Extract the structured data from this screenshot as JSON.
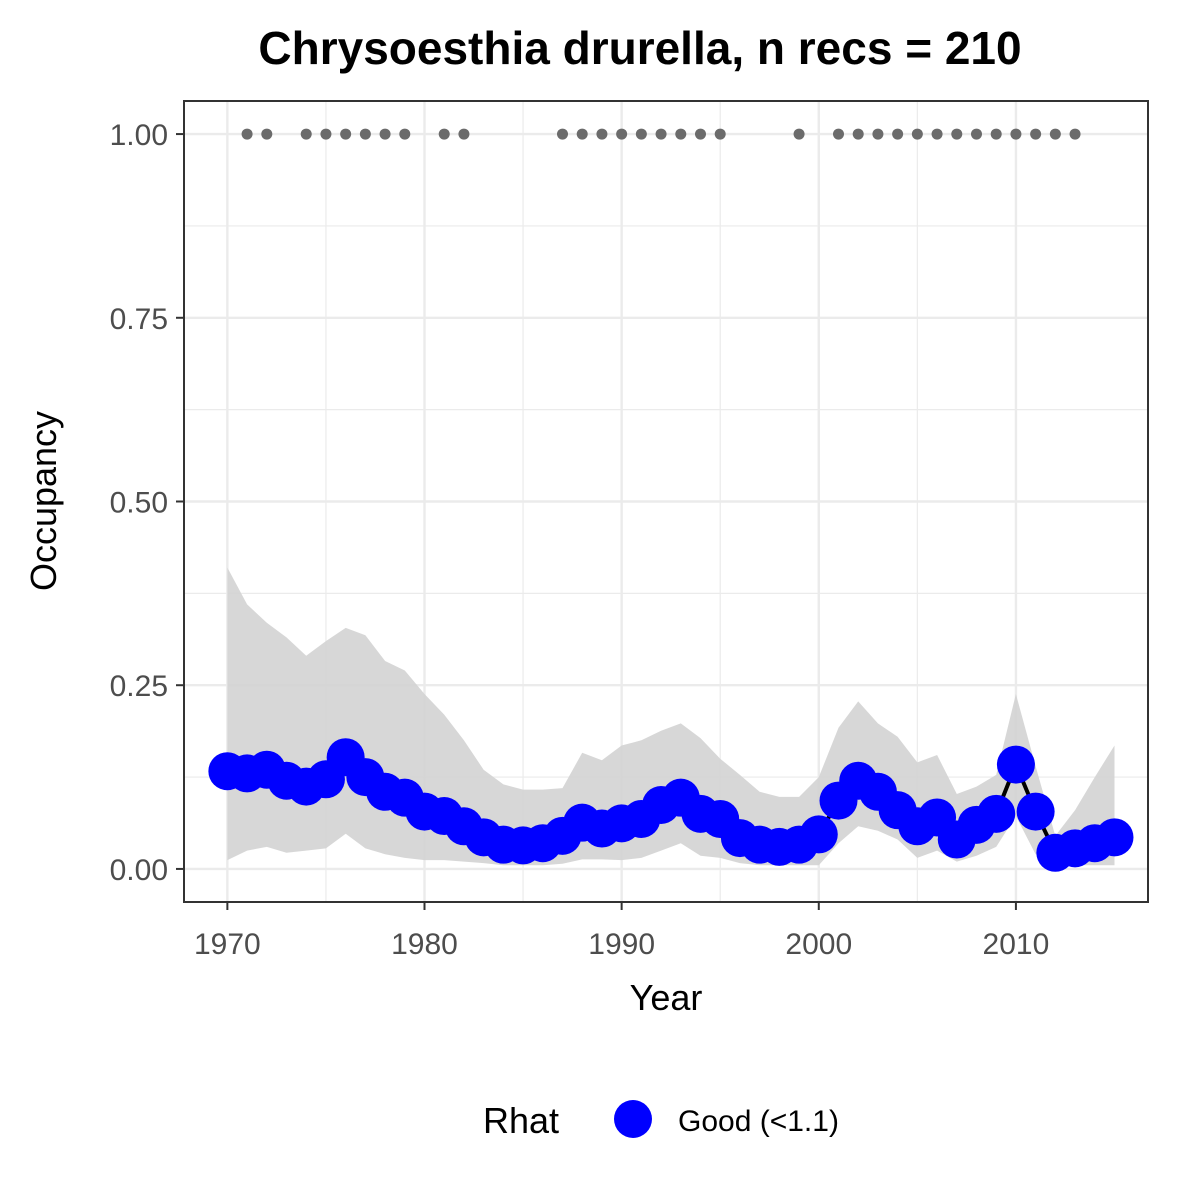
{
  "chart_data": {
    "type": "line",
    "title": "Chrysoesthia drurella, n recs = 210",
    "xlabel": "Year",
    "ylabel": "Occupancy",
    "xlim": [
      1967.8,
      2016.7
    ],
    "ylim": [
      -0.045,
      1.045
    ],
    "xticks": [
      1970,
      1980,
      1990,
      2000,
      2010
    ],
    "yticks": [
      0.0,
      0.25,
      0.5,
      0.75,
      1.0
    ],
    "ytick_labels": [
      "0.00",
      "0.25",
      "0.50",
      "0.75",
      "1.00"
    ],
    "grid": true,
    "legend": {
      "position": "bottom",
      "title": "Rhat",
      "entries": [
        {
          "label": "Good (<1.1)",
          "color": "#0000ff"
        }
      ]
    },
    "colors": {
      "series": "#0000ff",
      "line": "#000000",
      "ribbon": "#d3d3d3",
      "records": "#6b6b6b",
      "grid": "#ebebeb",
      "panel_border": "#333333"
    },
    "series": [
      {
        "name": "Good (<1.1)",
        "x": [
          1970,
          1971,
          1972,
          1973,
          1974,
          1975,
          1976,
          1977,
          1978,
          1979,
          1980,
          1981,
          1982,
          1983,
          1984,
          1985,
          1986,
          1987,
          1988,
          1989,
          1990,
          1991,
          1992,
          1993,
          1994,
          1995,
          1996,
          1997,
          1998,
          1999,
          2000,
          2001,
          2002,
          2003,
          2004,
          2005,
          2006,
          2007,
          2008,
          2009,
          2010,
          2011,
          2012,
          2013,
          2014,
          2015
        ],
        "values": [
          0.133,
          0.13,
          0.135,
          0.12,
          0.112,
          0.122,
          0.152,
          0.125,
          0.105,
          0.097,
          0.078,
          0.072,
          0.058,
          0.043,
          0.033,
          0.032,
          0.035,
          0.045,
          0.063,
          0.055,
          0.062,
          0.068,
          0.087,
          0.097,
          0.075,
          0.068,
          0.042,
          0.033,
          0.03,
          0.033,
          0.047,
          0.093,
          0.12,
          0.105,
          0.08,
          0.058,
          0.07,
          0.04,
          0.06,
          0.075,
          0.142,
          0.078,
          0.022,
          0.028,
          0.035,
          0.043
        ],
        "lower": [
          0.012,
          0.025,
          0.03,
          0.022,
          0.025,
          0.028,
          0.048,
          0.028,
          0.02,
          0.015,
          0.012,
          0.012,
          0.01,
          0.008,
          0.005,
          0.005,
          0.005,
          0.007,
          0.013,
          0.013,
          0.012,
          0.015,
          0.025,
          0.035,
          0.018,
          0.015,
          0.008,
          0.005,
          0.005,
          0.005,
          0.005,
          0.035,
          0.058,
          0.052,
          0.04,
          0.015,
          0.025,
          0.01,
          0.018,
          0.03,
          0.072,
          0.02,
          0.005,
          0.005,
          0.005,
          0.005
        ],
        "upper": [
          0.41,
          0.36,
          0.335,
          0.315,
          0.29,
          0.31,
          0.328,
          0.318,
          0.283,
          0.27,
          0.238,
          0.21,
          0.175,
          0.135,
          0.115,
          0.108,
          0.108,
          0.11,
          0.158,
          0.148,
          0.168,
          0.175,
          0.188,
          0.198,
          0.178,
          0.15,
          0.128,
          0.105,
          0.098,
          0.098,
          0.125,
          0.192,
          0.228,
          0.198,
          0.18,
          0.145,
          0.155,
          0.102,
          0.112,
          0.128,
          0.238,
          0.14,
          0.045,
          0.08,
          0.125,
          0.168
        ]
      }
    ],
    "records": {
      "value": 1.0,
      "years": [
        1971,
        1972,
        1974,
        1975,
        1976,
        1977,
        1978,
        1979,
        1981,
        1982,
        1987,
        1988,
        1989,
        1990,
        1991,
        1992,
        1993,
        1994,
        1995,
        1999,
        2001,
        2002,
        2003,
        2004,
        2005,
        2006,
        2007,
        2008,
        2009,
        2010,
        2011,
        2012,
        2013
      ]
    }
  }
}
